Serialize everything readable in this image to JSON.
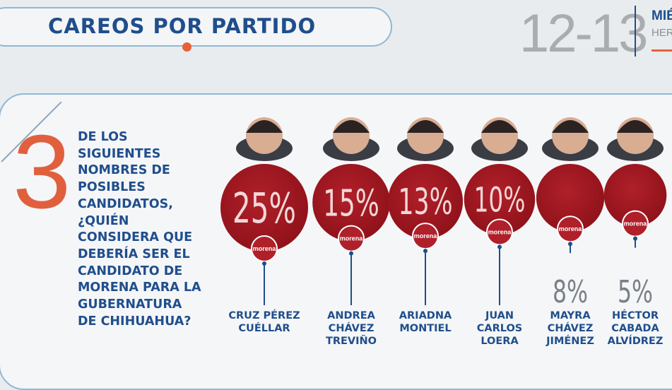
{
  "header": {
    "title": "CAREOS POR PARTIDO",
    "page_number": "12-13",
    "day_partial": "MIÉ",
    "publication_partial": "HERA"
  },
  "question": {
    "number": "3",
    "lines": [
      "DE LOS",
      "SIGUIENTES",
      "NOMBRES DE",
      "POSIBLES",
      "CANDIDATOS,",
      "¿QUIÉN",
      "CONSIDERA QUE",
      "DEBERÍA SER EL",
      "CANDIDATO DE",
      "MORENA PARA LA",
      "GUBERNATURA",
      "DE CHIHUAHUA?"
    ]
  },
  "colors": {
    "bubble": "#b0202a",
    "bubble_dark": "#8e1119",
    "label_blue": "#1f4e8c",
    "accent_orange": "#e0603e",
    "badge_text": "#ffffff"
  },
  "chart_data": {
    "type": "bubble",
    "unit": "%",
    "categories": [
      "CRUZ PÉREZ CUÉLLAR",
      "ANDREA CHÁVEZ TREVIÑO",
      "ARIADNA MONTIEL",
      "JUAN CARLOS LOERA",
      "MAYRA CHÁVEZ JIMÉNEZ",
      "HÉCTOR CABADA ALVÍDREZ"
    ],
    "values": [
      25,
      15,
      13,
      10,
      8,
      5
    ],
    "value_labels": [
      "25%",
      "15%",
      "13%",
      "10%",
      "8%",
      "5%"
    ],
    "name_lines": [
      [
        "CRUZ PÉREZ",
        "CUÉLLAR"
      ],
      [
        "ANDREA",
        "CHÁVEZ",
        "TREVIÑO"
      ],
      [
        "ARIADNA",
        "MONTIEL"
      ],
      [
        "JUAN",
        "CARLOS",
        "LOERA"
      ],
      [
        "MAYRA",
        "CHÁVEZ",
        "JIMÉNEZ"
      ],
      [
        "HÉCTOR",
        "CABADA",
        "ALVÍDREZ"
      ]
    ],
    "badge_text": "morena",
    "label_placement": [
      "inside",
      "inside",
      "inside",
      "inside",
      "below",
      "below"
    ]
  }
}
